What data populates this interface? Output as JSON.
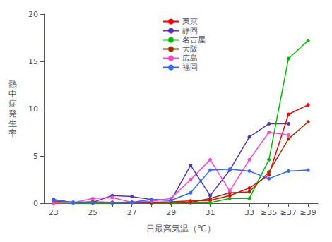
{
  "chart_data": {
    "type": "line",
    "xlabel": "日最高気温（℃）",
    "ylabel": "熱\n中\n症\n発\n生\n率",
    "categories": [
      "23",
      null,
      "25",
      null,
      "27",
      null,
      "29",
      null,
      "31",
      null,
      "33",
      "≥35",
      "≥37",
      "≥39"
    ],
    "series": [
      {
        "name": "東京",
        "color": "#ff0000",
        "values": [
          0.25,
          0.1,
          0.15,
          0.1,
          0.1,
          0.1,
          0.15,
          0.25,
          0.3,
          0.8,
          1.6,
          3.0,
          9.4,
          10.4
        ]
      },
      {
        "name": "静岡",
        "color": "#5533bb",
        "values": [
          0.4,
          0.05,
          0.1,
          0.8,
          0.7,
          0.4,
          0.3,
          4.0,
          0.8,
          3.5,
          7.0,
          8.4,
          8.4,
          null
        ]
      },
      {
        "name": "名古屋",
        "color": "#00bb00",
        "values": [
          0.05,
          0.0,
          0.0,
          0.0,
          0.05,
          0.05,
          0.0,
          0.05,
          0.05,
          0.5,
          0.5,
          4.6,
          15.3,
          17.2
        ]
      },
      {
        "name": "大阪",
        "color": "#993300",
        "values": [
          0.1,
          0.05,
          0.1,
          0.05,
          0.1,
          0.05,
          0.1,
          0.1,
          0.5,
          1.1,
          1.2,
          3.3,
          6.8,
          8.6
        ]
      },
      {
        "name": "広島",
        "color": "#ff44cc",
        "values": [
          0.0,
          0.05,
          0.5,
          0.6,
          0.1,
          0.2,
          0.5,
          2.5,
          4.6,
          1.3,
          4.6,
          7.5,
          7.2,
          null
        ]
      },
      {
        "name": "福岡",
        "color": "#3366ff",
        "values": [
          0.35,
          0.1,
          0.05,
          0.05,
          0.1,
          0.4,
          0.3,
          1.1,
          3.5,
          3.6,
          3.4,
          2.6,
          3.4,
          3.5
        ]
      }
    ],
    "ylim": [
      0,
      20
    ],
    "yticks": [
      0,
      5,
      10,
      15,
      20
    ],
    "grid": false,
    "legend": "upper center",
    "marker": "circle"
  }
}
